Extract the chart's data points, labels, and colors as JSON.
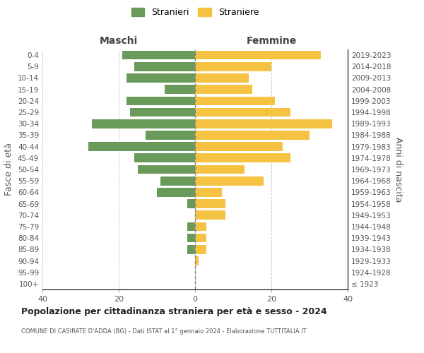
{
  "age_groups": [
    "100+",
    "95-99",
    "90-94",
    "85-89",
    "80-84",
    "75-79",
    "70-74",
    "65-69",
    "60-64",
    "55-59",
    "50-54",
    "45-49",
    "40-44",
    "35-39",
    "30-34",
    "25-29",
    "20-24",
    "15-19",
    "10-14",
    "5-9",
    "0-4"
  ],
  "birth_years": [
    "≤ 1923",
    "1924-1928",
    "1929-1933",
    "1934-1938",
    "1939-1943",
    "1944-1948",
    "1949-1953",
    "1954-1958",
    "1959-1963",
    "1964-1968",
    "1969-1973",
    "1974-1978",
    "1979-1983",
    "1984-1988",
    "1989-1993",
    "1994-1998",
    "1999-2003",
    "2004-2008",
    "2009-2013",
    "2014-2018",
    "2019-2023"
  ],
  "maschi": [
    0,
    0,
    0,
    2,
    2,
    2,
    0,
    2,
    10,
    9,
    15,
    16,
    28,
    13,
    27,
    17,
    18,
    8,
    18,
    16,
    19
  ],
  "femmine": [
    0,
    0,
    1,
    3,
    3,
    3,
    8,
    8,
    7,
    18,
    13,
    25,
    23,
    30,
    36,
    25,
    21,
    15,
    14,
    20,
    33
  ],
  "maschi_color": "#6a9a5a",
  "femmine_color": "#f5c242",
  "title": "Popolazione per cittadinanza straniera per età e sesso - 2024",
  "subtitle": "COMUNE DI CASIRATE D'ADDA (BG) - Dati ISTAT al 1° gennaio 2024 - Elaborazione TUTTITALIA.IT",
  "ylabel_left": "Fasce di età",
  "ylabel_right": "Anni di nascita",
  "xlabel_left": "Maschi",
  "xlabel_right": "Femmine",
  "legend_maschi": "Stranieri",
  "legend_femmine": "Straniere",
  "xlim": 40,
  "background_color": "#ffffff",
  "grid_color": "#cccccc"
}
